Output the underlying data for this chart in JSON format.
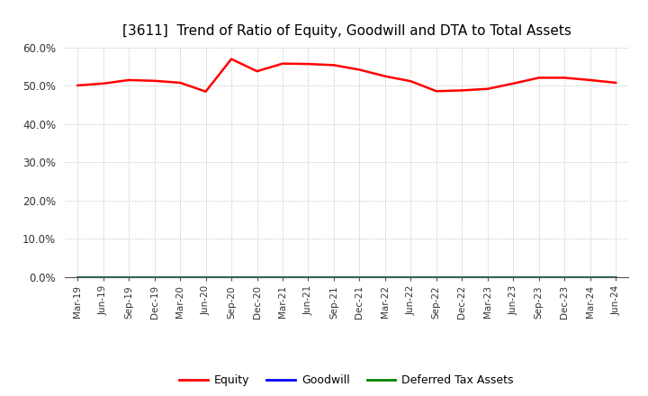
{
  "title": "[3611]  Trend of Ratio of Equity, Goodwill and DTA to Total Assets",
  "x_labels": [
    "Mar-19",
    "Jun-19",
    "Sep-19",
    "Dec-19",
    "Mar-20",
    "Jun-20",
    "Sep-20",
    "Dec-20",
    "Mar-21",
    "Jun-21",
    "Sep-21",
    "Dec-21",
    "Mar-22",
    "Jun-22",
    "Sep-22",
    "Dec-22",
    "Mar-23",
    "Jun-23",
    "Sep-23",
    "Dec-23",
    "Mar-24",
    "Jun-24"
  ],
  "equity": [
    50.1,
    50.6,
    51.5,
    51.3,
    50.8,
    48.5,
    57.0,
    53.8,
    55.8,
    55.7,
    55.4,
    54.2,
    52.5,
    51.2,
    48.6,
    48.8,
    49.2,
    50.6,
    52.1,
    52.1,
    51.5,
    50.8
  ],
  "goodwill": [
    0.0,
    0.0,
    0.0,
    0.0,
    0.0,
    0.0,
    0.0,
    0.0,
    0.0,
    0.0,
    0.0,
    0.0,
    0.0,
    0.0,
    0.0,
    0.0,
    0.0,
    0.0,
    0.0,
    0.0,
    0.0,
    0.0
  ],
  "dta": [
    0.0,
    0.0,
    0.0,
    0.0,
    0.0,
    0.0,
    0.0,
    0.0,
    0.0,
    0.0,
    0.0,
    0.0,
    0.0,
    0.0,
    0.0,
    0.0,
    0.0,
    0.0,
    0.0,
    0.0,
    0.0,
    0.0
  ],
  "equity_color": "#ff0000",
  "goodwill_color": "#0000ff",
  "dta_color": "#008000",
  "ylim": [
    0,
    60
  ],
  "yticks": [
    0,
    10,
    20,
    30,
    40,
    50,
    60
  ],
  "ytick_labels": [
    "0.0%",
    "10.0%",
    "20.0%",
    "30.0%",
    "40.0%",
    "50.0%",
    "60.0%"
  ],
  "background_color": "#ffffff",
  "plot_bg_color": "#ffffff",
  "grid_color": "#b0b0b0",
  "title_fontsize": 11,
  "legend_labels": [
    "Equity",
    "Goodwill",
    "Deferred Tax Assets"
  ]
}
